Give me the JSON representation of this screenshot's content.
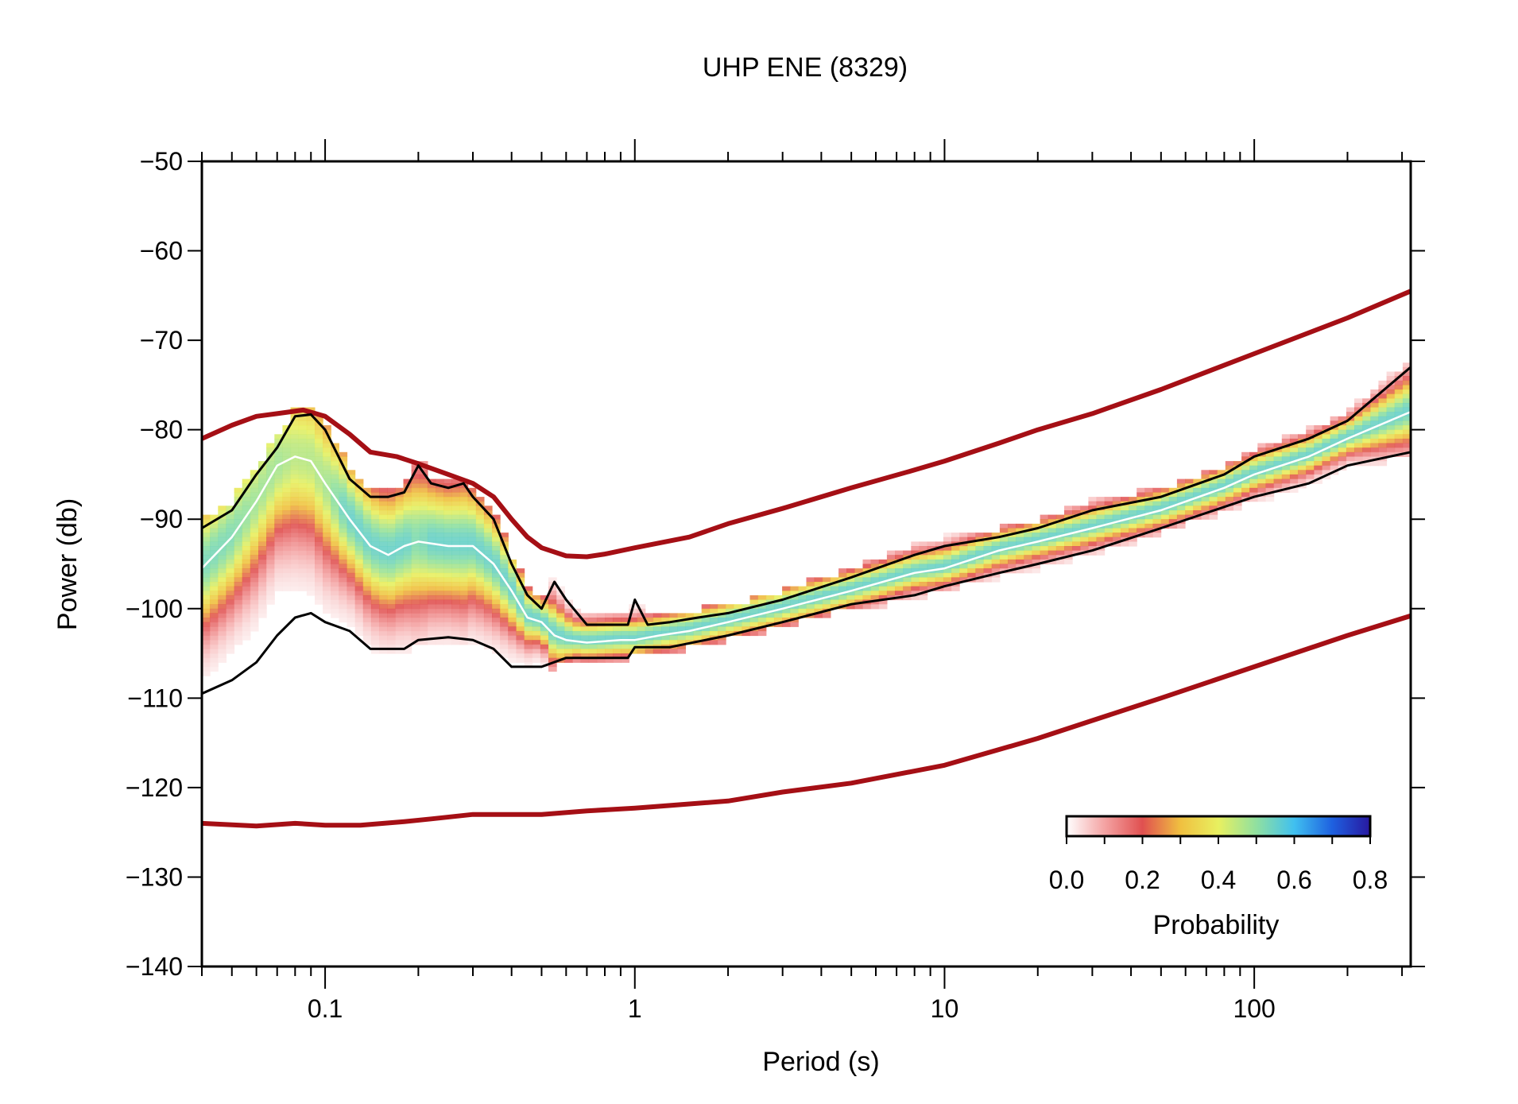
{
  "chart_data": {
    "type": "line",
    "title": "UHP ENE (8329)",
    "xlabel": "Period (s)",
    "ylabel": "Power (db)",
    "x_scale": "log",
    "xlim": [
      0.04,
      320
    ],
    "ylim": [
      -140,
      -50
    ],
    "x_tick_labels": [
      {
        "value": 0.1,
        "label": "0.1"
      },
      {
        "value": 1,
        "label": "1"
      },
      {
        "value": 10,
        "label": "10"
      },
      {
        "value": 100,
        "label": "100"
      }
    ],
    "y_tick_labels": [
      {
        "value": -50,
        "label": "−50"
      },
      {
        "value": -60,
        "label": "−60"
      },
      {
        "value": -70,
        "label": "−70"
      },
      {
        "value": -80,
        "label": "−80"
      },
      {
        "value": -90,
        "label": "−90"
      },
      {
        "value": -100,
        "label": "−100"
      },
      {
        "value": -110,
        "label": "−110"
      },
      {
        "value": -120,
        "label": "−120"
      },
      {
        "value": -130,
        "label": "−130"
      },
      {
        "value": -140,
        "label": "−140"
      }
    ],
    "grid": false,
    "colorbar": {
      "label": "Probability",
      "range": [
        0,
        0.8
      ],
      "placement": "bottom-right",
      "tick_labels": [
        {
          "value": 0.0,
          "label": "0.0"
        },
        {
          "value": 0.2,
          "label": "0.2"
        },
        {
          "value": 0.4,
          "label": "0.4"
        },
        {
          "value": 0.6,
          "label": "0.6"
        },
        {
          "value": 0.8,
          "label": "0.8"
        }
      ],
      "colors": [
        "#ffffff",
        "#f4a3a3",
        "#e05050",
        "#f0c040",
        "#e8f060",
        "#90e0a0",
        "#40c0f0",
        "#1e60e0",
        "#2818a0"
      ]
    },
    "series": [
      {
        "role": "new-high-noise-model",
        "color": "#a50f15",
        "points": [
          [
            0.04,
            -81
          ],
          [
            0.05,
            -79.5
          ],
          [
            0.06,
            -78.5
          ],
          [
            0.07,
            -78.2
          ],
          [
            0.085,
            -77.8
          ],
          [
            0.1,
            -78.5
          ],
          [
            0.12,
            -80.5
          ],
          [
            0.14,
            -82.5
          ],
          [
            0.17,
            -83
          ],
          [
            0.2,
            -83.8
          ],
          [
            0.25,
            -85
          ],
          [
            0.3,
            -86
          ],
          [
            0.35,
            -87.5
          ],
          [
            0.4,
            -90
          ],
          [
            0.45,
            -92
          ],
          [
            0.5,
            -93.2
          ],
          [
            0.6,
            -94.1
          ],
          [
            0.7,
            -94.2
          ],
          [
            0.8,
            -93.9
          ],
          [
            1,
            -93.2
          ],
          [
            1.5,
            -92
          ],
          [
            2,
            -90.5
          ],
          [
            3,
            -88.8
          ],
          [
            5,
            -86.5
          ],
          [
            8,
            -84.5
          ],
          [
            10,
            -83.5
          ],
          [
            15,
            -81.5
          ],
          [
            20,
            -80
          ],
          [
            30,
            -78.2
          ],
          [
            50,
            -75.5
          ],
          [
            100,
            -71.5
          ],
          [
            200,
            -67.5
          ],
          [
            320,
            -64.5
          ]
        ]
      },
      {
        "role": "new-low-noise-model",
        "color": "#a50f15",
        "points": [
          [
            0.04,
            -124
          ],
          [
            0.06,
            -124.3
          ],
          [
            0.08,
            -124
          ],
          [
            0.1,
            -124.2
          ],
          [
            0.13,
            -124.2
          ],
          [
            0.18,
            -123.8
          ],
          [
            0.22,
            -123.5
          ],
          [
            0.3,
            -123
          ],
          [
            0.5,
            -123
          ],
          [
            0.7,
            -122.6
          ],
          [
            1,
            -122.3
          ],
          [
            2,
            -121.5
          ],
          [
            3,
            -120.5
          ],
          [
            5,
            -119.5
          ],
          [
            10,
            -117.5
          ],
          [
            20,
            -114.5
          ],
          [
            30,
            -112.5
          ],
          [
            50,
            -110
          ],
          [
            100,
            -106.5
          ],
          [
            200,
            -103
          ],
          [
            320,
            -100.8
          ]
        ]
      },
      {
        "role": "pdf-upper-envelope",
        "color": "#000000",
        "points": [
          [
            0.04,
            -91
          ],
          [
            0.05,
            -89
          ],
          [
            0.06,
            -85
          ],
          [
            0.07,
            -82
          ],
          [
            0.08,
            -78.5
          ],
          [
            0.09,
            -78.3
          ],
          [
            0.1,
            -80
          ],
          [
            0.12,
            -85.5
          ],
          [
            0.14,
            -87.5
          ],
          [
            0.16,
            -87.5
          ],
          [
            0.18,
            -87
          ],
          [
            0.2,
            -84
          ],
          [
            0.22,
            -86
          ],
          [
            0.25,
            -86.5
          ],
          [
            0.28,
            -86
          ],
          [
            0.3,
            -87.5
          ],
          [
            0.35,
            -90
          ],
          [
            0.4,
            -95
          ],
          [
            0.45,
            -98.5
          ],
          [
            0.5,
            -100
          ],
          [
            0.55,
            -97
          ],
          [
            0.6,
            -99
          ],
          [
            0.7,
            -101.8
          ],
          [
            0.85,
            -101.8
          ],
          [
            0.95,
            -101.8
          ],
          [
            1,
            -99
          ],
          [
            1.1,
            -101.8
          ],
          [
            1.3,
            -101.5
          ],
          [
            1.6,
            -101
          ],
          [
            2,
            -100.5
          ],
          [
            3,
            -99
          ],
          [
            5,
            -96.5
          ],
          [
            8,
            -94
          ],
          [
            10,
            -93
          ],
          [
            15,
            -92
          ],
          [
            20,
            -91
          ],
          [
            30,
            -89
          ],
          [
            50,
            -87.5
          ],
          [
            80,
            -85
          ],
          [
            100,
            -83
          ],
          [
            150,
            -81
          ],
          [
            200,
            -79
          ],
          [
            320,
            -73
          ]
        ]
      },
      {
        "role": "pdf-lower-envelope",
        "color": "#000000",
        "points": [
          [
            0.04,
            -109.5
          ],
          [
            0.05,
            -108
          ],
          [
            0.06,
            -106
          ],
          [
            0.07,
            -103
          ],
          [
            0.08,
            -101
          ],
          [
            0.09,
            -100.5
          ],
          [
            0.1,
            -101.5
          ],
          [
            0.12,
            -102.5
          ],
          [
            0.14,
            -104.5
          ],
          [
            0.18,
            -104.5
          ],
          [
            0.2,
            -103.5
          ],
          [
            0.25,
            -103.2
          ],
          [
            0.3,
            -103.5
          ],
          [
            0.35,
            -104.5
          ],
          [
            0.4,
            -106.5
          ],
          [
            0.5,
            -106.5
          ],
          [
            0.6,
            -105.5
          ],
          [
            0.8,
            -105.5
          ],
          [
            0.95,
            -105.5
          ],
          [
            1,
            -104.3
          ],
          [
            1.3,
            -104.3
          ],
          [
            2,
            -103
          ],
          [
            3,
            -101.5
          ],
          [
            5,
            -99.5
          ],
          [
            8,
            -98.5
          ],
          [
            10,
            -97.5
          ],
          [
            15,
            -96
          ],
          [
            20,
            -95
          ],
          [
            30,
            -93.5
          ],
          [
            50,
            -91
          ],
          [
            100,
            -87.5
          ],
          [
            150,
            -86
          ],
          [
            200,
            -84
          ],
          [
            320,
            -82.5
          ]
        ]
      },
      {
        "role": "pdf-mode",
        "color": "#ffffff",
        "points": [
          [
            0.04,
            -95.5
          ],
          [
            0.05,
            -92
          ],
          [
            0.06,
            -88
          ],
          [
            0.07,
            -84
          ],
          [
            0.08,
            -83
          ],
          [
            0.09,
            -83.5
          ],
          [
            0.1,
            -86
          ],
          [
            0.12,
            -90
          ],
          [
            0.14,
            -93
          ],
          [
            0.16,
            -94
          ],
          [
            0.18,
            -93
          ],
          [
            0.2,
            -92.5
          ],
          [
            0.25,
            -93
          ],
          [
            0.3,
            -93
          ],
          [
            0.35,
            -95
          ],
          [
            0.4,
            -98
          ],
          [
            0.45,
            -101
          ],
          [
            0.5,
            -101.5
          ],
          [
            0.55,
            -103
          ],
          [
            0.6,
            -103.5
          ],
          [
            0.7,
            -103.8
          ],
          [
            0.9,
            -103.5
          ],
          [
            1,
            -103.5
          ],
          [
            1.2,
            -103
          ],
          [
            1.5,
            -102.5
          ],
          [
            2,
            -101.5
          ],
          [
            3,
            -100
          ],
          [
            5,
            -98
          ],
          [
            8,
            -96
          ],
          [
            10,
            -95.5
          ],
          [
            15,
            -93.5
          ],
          [
            20,
            -92.5
          ],
          [
            30,
            -91
          ],
          [
            50,
            -89
          ],
          [
            80,
            -86.5
          ],
          [
            100,
            -85
          ],
          [
            150,
            -83
          ],
          [
            200,
            -81
          ],
          [
            320,
            -78
          ]
        ]
      }
    ]
  }
}
